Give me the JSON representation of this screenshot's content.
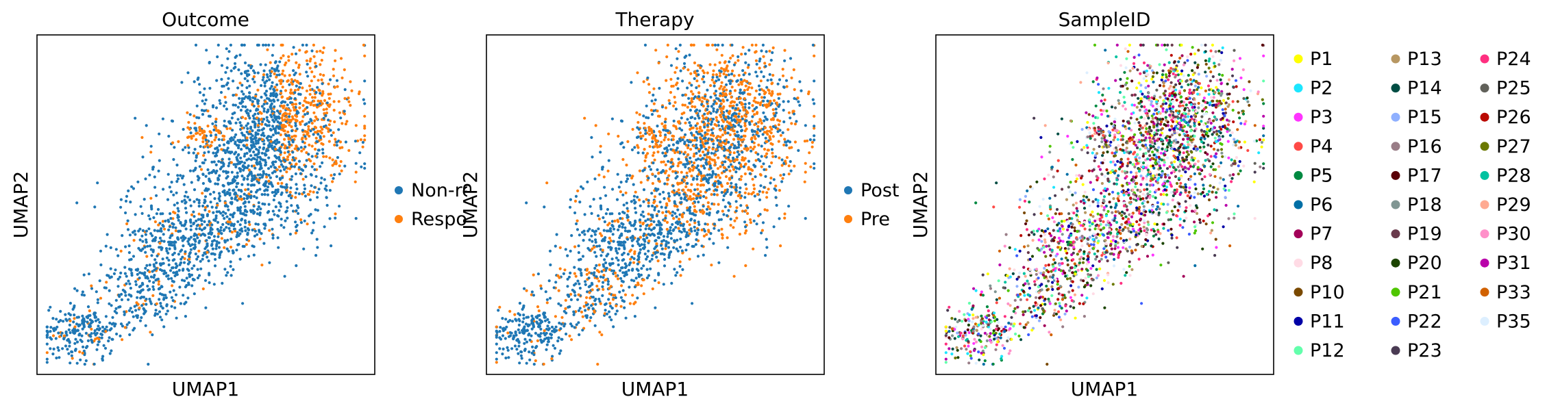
{
  "chart_data": [
    {
      "type": "scatter",
      "title": "Outcome",
      "xlabel": "UMAP1",
      "ylabel": "UMAP2",
      "ticks": "none",
      "legend_position": "right-center",
      "legend_labels_truncated": [
        "Non-res",
        "Respon"
      ],
      "series": [
        {
          "name": "Non-responder",
          "color": "#1f77b4"
        },
        {
          "name": "Responder",
          "color": "#ff7f0e"
        }
      ]
    },
    {
      "type": "scatter",
      "title": "Therapy",
      "xlabel": "UMAP1",
      "ylabel": "UMAP2",
      "ticks": "none",
      "legend_position": "right-center",
      "series": [
        {
          "name": "Post",
          "color": "#1f77b4"
        },
        {
          "name": "Pre",
          "color": "#ff7f0e"
        }
      ]
    },
    {
      "type": "scatter",
      "title": "SampleID",
      "xlabel": "UMAP1",
      "ylabel": "UMAP2",
      "ticks": "none",
      "legend_position": "right",
      "legend_columns": 3,
      "series": [
        {
          "name": "P1",
          "color": "#ffff00"
        },
        {
          "name": "P2",
          "color": "#1ce6ff"
        },
        {
          "name": "P3",
          "color": "#ff34ff"
        },
        {
          "name": "P4",
          "color": "#ff4a46"
        },
        {
          "name": "P5",
          "color": "#008941"
        },
        {
          "name": "P6",
          "color": "#006fa6"
        },
        {
          "name": "P7",
          "color": "#a30059"
        },
        {
          "name": "P8",
          "color": "#ffdbe5"
        },
        {
          "name": "P10",
          "color": "#7a4900"
        },
        {
          "name": "P11",
          "color": "#0000a6"
        },
        {
          "name": "P12",
          "color": "#63ffac"
        },
        {
          "name": "P13",
          "color": "#b79762"
        },
        {
          "name": "P14",
          "color": "#004d43"
        },
        {
          "name": "P15",
          "color": "#8fb0ff"
        },
        {
          "name": "P16",
          "color": "#997d87"
        },
        {
          "name": "P17",
          "color": "#5a0007"
        },
        {
          "name": "P18",
          "color": "#809693"
        },
        {
          "name": "P19",
          "color": "#6a3a4c"
        },
        {
          "name": "P20",
          "color": "#1b4400"
        },
        {
          "name": "P21",
          "color": "#4fc601"
        },
        {
          "name": "P22",
          "color": "#3b5dff"
        },
        {
          "name": "P23",
          "color": "#4a3b53"
        },
        {
          "name": "P24",
          "color": "#ff2f80"
        },
        {
          "name": "P25",
          "color": "#61615a"
        },
        {
          "name": "P26",
          "color": "#ba0900"
        },
        {
          "name": "P27",
          "color": "#6b7900"
        },
        {
          "name": "P28",
          "color": "#00c2a0"
        },
        {
          "name": "P29",
          "color": "#ffaa92"
        },
        {
          "name": "P30",
          "color": "#ff90c9"
        },
        {
          "name": "P31",
          "color": "#b903aa"
        },
        {
          "name": "P33",
          "color": "#d16100"
        },
        {
          "name": "P35",
          "color": "#ddefff"
        }
      ]
    }
  ]
}
